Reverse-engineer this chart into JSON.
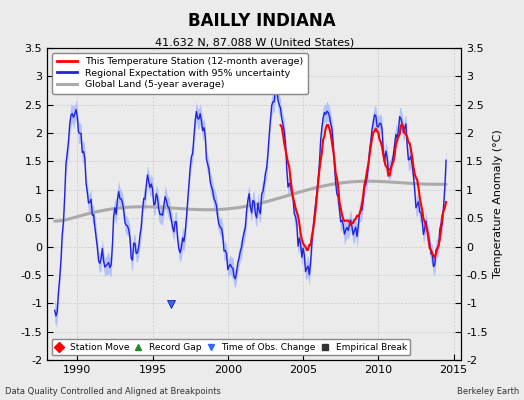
{
  "title": "BAILLY INDIANA",
  "subtitle": "41.632 N, 87.088 W (United States)",
  "xlabel_left": "Data Quality Controlled and Aligned at Breakpoints",
  "xlabel_right": "Berkeley Earth",
  "ylabel": "Temperature Anomaly (°C)",
  "xlim": [
    1988.0,
    2015.5
  ],
  "ylim": [
    -2.0,
    3.5
  ],
  "yticks": [
    -2,
    -1.5,
    -1,
    -0.5,
    0,
    0.5,
    1,
    1.5,
    2,
    2.5,
    3,
    3.5
  ],
  "xticks": [
    1990,
    1995,
    2000,
    2005,
    2010,
    2015
  ],
  "station_color": "#FF0000",
  "regional_color": "#2222DD",
  "regional_fill": "#AABBFF",
  "global_color": "#AAAAAA",
  "bg_color": "#EBEBEB",
  "time_of_obs_x": 1996.2,
  "time_of_obs_y": -1.02,
  "station_start_year": 2003.5
}
